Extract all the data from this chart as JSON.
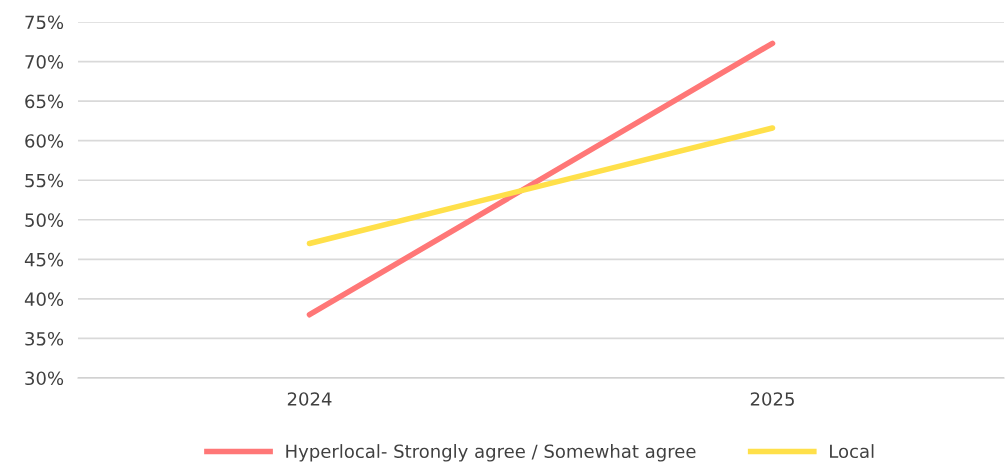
{
  "chart_data": {
    "type": "line",
    "categories": [
      "2024",
      "2025"
    ],
    "series": [
      {
        "name": "Hyperlocal- Strongly agree / Somewhat agree",
        "color": "#ff7777",
        "values": [
          38,
          72.3
        ]
      },
      {
        "name": "Local",
        "color": "#ffe04a",
        "values": [
          47,
          61.6
        ]
      }
    ],
    "ylim": [
      30,
      75
    ],
    "yticks": [
      {
        "value": 30,
        "label": "30%"
      },
      {
        "value": 35,
        "label": "35%"
      },
      {
        "value": 40,
        "label": "40%"
      },
      {
        "value": 45,
        "label": "45%"
      },
      {
        "value": 50,
        "label": "50%"
      },
      {
        "value": 55,
        "label": "55%"
      },
      {
        "value": 60,
        "label": "60%"
      },
      {
        "value": 65,
        "label": "65%"
      },
      {
        "value": 70,
        "label": "70%"
      },
      {
        "value": 75,
        "label": "75%"
      }
    ],
    "grid": "y",
    "legend": "bottom",
    "marker": "none",
    "line_style": "solid"
  }
}
